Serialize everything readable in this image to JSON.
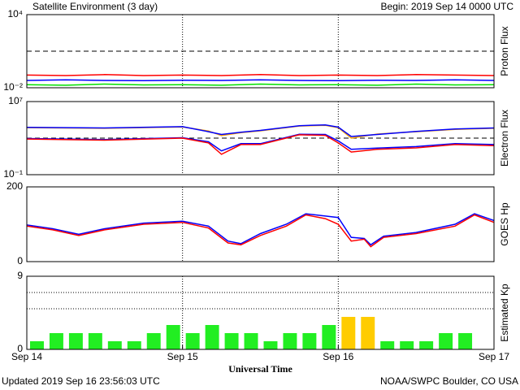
{
  "title": "Satellite Environment (3 day)",
  "begin": "Begin:  2019 Sep 14 0000 UTC",
  "updated": "Updated 2019 Sep 16 23:56:03 UTC",
  "credit": "NOAA/SWPC Boulder, CO USA",
  "chart_data": [
    {
      "type": "line",
      "ylabel": "Proton Flux",
      "log": true,
      "ylim": [
        0.01,
        10000
      ],
      "yticks": [
        {
          "value": 0.01,
          "label": "10⁻²"
        },
        {
          "value": 10000,
          "label": "10⁴"
        }
      ],
      "threshold": 10,
      "x": [
        0,
        6,
        12,
        18,
        24,
        30,
        36,
        42,
        48,
        54,
        60,
        66,
        72
      ],
      "series": [
        {
          "color": "#ff0000",
          "values": [
            0.11,
            0.1,
            0.12,
            0.1,
            0.11,
            0.1,
            0.12,
            0.1,
            0.11,
            0.1,
            0.12,
            0.11,
            0.1
          ]
        },
        {
          "color": "#0000ff",
          "values": [
            0.04,
            0.045,
            0.04,
            0.038,
            0.042,
            0.04,
            0.045,
            0.04,
            0.038,
            0.042,
            0.04,
            0.045,
            0.04
          ]
        },
        {
          "color": "#00e000",
          "values": [
            0.018,
            0.016,
            0.02,
            0.017,
            0.018,
            0.016,
            0.02,
            0.017,
            0.018,
            0.016,
            0.02,
            0.017,
            0.018
          ]
        }
      ]
    },
    {
      "type": "line",
      "ylabel": "Electron Flux",
      "log": true,
      "ylim": [
        0.1,
        10000000
      ],
      "yticks": [
        {
          "value": 0.1,
          "label": "10⁻¹"
        },
        {
          "value": 10000000,
          "label": "10⁷"
        }
      ],
      "threshold": 1000,
      "x": [
        0,
        12,
        24,
        28,
        30,
        33,
        36,
        42,
        46,
        48,
        50,
        54,
        60,
        66,
        72
      ],
      "series": [
        {
          "color": "#ffa500",
          "values": [
            14000,
            12000,
            17000,
            6000,
            1900,
            4000,
            6300,
            21000,
            25000,
            14000,
            1000,
            2800,
            5000,
            9000,
            12000
          ]
        },
        {
          "color": "#0000ff",
          "values": [
            15000,
            13000,
            18000,
            5000,
            2500,
            4500,
            7000,
            23000,
            28000,
            16000,
            1500,
            2500,
            5500,
            10000,
            13000
          ]
        },
        {
          "color": "#0000ff",
          "values": [
            900,
            700,
            1100,
            400,
            40,
            250,
            250,
            2600,
            2500,
            500,
            60,
            80,
            120,
            250,
            200
          ]
        },
        {
          "color": "#ff0000",
          "values": [
            800,
            600,
            1000,
            300,
            17,
            200,
            200,
            2300,
            2000,
            300,
            30,
            60,
            85,
            200,
            150
          ]
        }
      ]
    },
    {
      "type": "line",
      "ylabel": "GOES Hp",
      "ylim": [
        0,
        200
      ],
      "yticks": [
        0,
        200
      ],
      "x": [
        0,
        4,
        8,
        12,
        18,
        24,
        28,
        31,
        33,
        36,
        40,
        43,
        46,
        48,
        50,
        52,
        53,
        55,
        60,
        66,
        69,
        72
      ],
      "series": [
        {
          "color": "#0000ff",
          "values": [
            98,
            88,
            73,
            88,
            103,
            108,
            95,
            55,
            48,
            75,
            100,
            128,
            122,
            118,
            65,
            62,
            45,
            68,
            78,
            100,
            128,
            110
          ]
        },
        {
          "color": "#ff0000",
          "values": [
            95,
            85,
            70,
            85,
            100,
            105,
            90,
            50,
            45,
            70,
            95,
            125,
            115,
            100,
            55,
            60,
            40,
            65,
            75,
            95,
            125,
            105
          ]
        }
      ]
    },
    {
      "type": "bar",
      "ylabel": "Estimated Kp",
      "ylim": [
        0,
        9
      ],
      "yticks": [
        0,
        9
      ],
      "hlines": [
        5,
        7,
        9
      ],
      "xlabel": "Universal Time",
      "xlim": [
        0,
        72
      ],
      "xticks": [
        {
          "value": 0,
          "label": "Sep 14"
        },
        {
          "value": 24,
          "label": "Sep 15"
        },
        {
          "value": 48,
          "label": "Sep 16"
        },
        {
          "value": 72,
          "label": "Sep 17"
        }
      ],
      "x": [
        0,
        3,
        6,
        9,
        12,
        15,
        18,
        21,
        24,
        27,
        30,
        33,
        36,
        39,
        42,
        45,
        48,
        51,
        54,
        57,
        60,
        63,
        66,
        69
      ],
      "values": [
        1,
        2,
        2,
        2,
        1,
        1,
        2,
        3,
        2,
        3,
        2,
        2,
        1,
        2,
        2,
        3,
        4,
        4,
        1,
        1,
        1,
        2,
        2,
        null
      ],
      "colors": [
        "#22ee22",
        "#22ee22",
        "#22ee22",
        "#22ee22",
        "#22ee22",
        "#22ee22",
        "#22ee22",
        "#22ee22",
        "#22ee22",
        "#22ee22",
        "#22ee22",
        "#22ee22",
        "#22ee22",
        "#22ee22",
        "#22ee22",
        "#22ee22",
        "#ffcc00",
        "#ffcc00",
        "#22ee22",
        "#22ee22",
        "#22ee22",
        "#22ee22",
        "#22ee22",
        "#22ee22"
      ]
    }
  ]
}
